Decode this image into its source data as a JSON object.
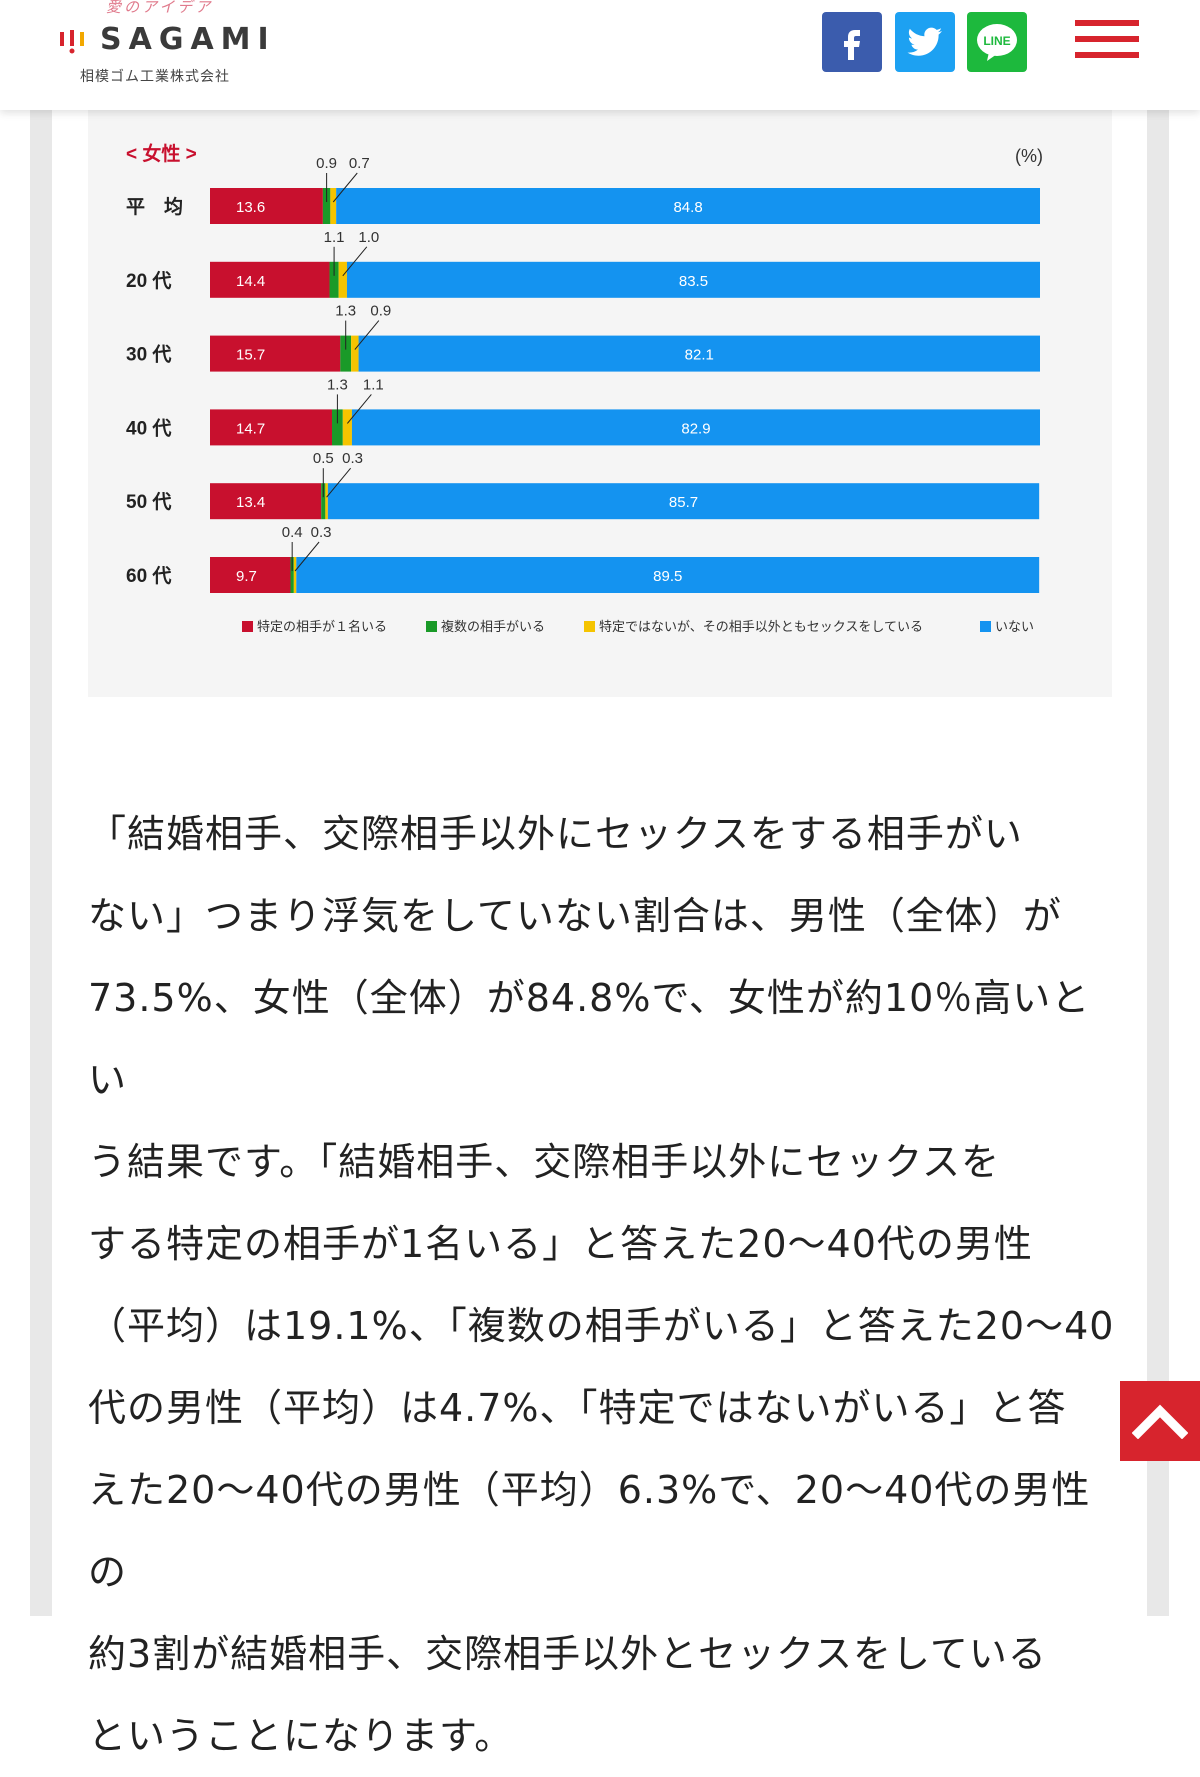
{
  "header": {
    "logo_tagline": "愛のアイデア",
    "logo_text": "SAGAMI",
    "logo_company": "相模ゴム工業株式会社",
    "social": [
      {
        "name": "facebook",
        "glyph": "f",
        "color": "#3b5cad"
      },
      {
        "name": "twitter",
        "glyph": "twitter-bird",
        "color": "#1da1f2"
      },
      {
        "name": "line",
        "glyph": "LINE",
        "color": "#1db93d"
      }
    ],
    "menu_icon": "hamburger-icon",
    "accent": "#d7242d"
  },
  "chart_data": {
    "type": "bar",
    "orientation": "horizontal",
    "stacked": true,
    "title": "< 女性 >",
    "unit_label": "(%)",
    "categories": [
      "平　均",
      "20 代",
      "30 代",
      "40 代",
      "50 代",
      "60 代"
    ],
    "series": [
      {
        "name": "特定の相手が１名いる",
        "color": "#c8102e",
        "values": [
          13.6,
          14.4,
          15.7,
          14.7,
          13.4,
          9.7
        ]
      },
      {
        "name": "複数の相手がいる",
        "color": "#1a9a28",
        "values": [
          0.9,
          1.1,
          1.3,
          1.3,
          0.5,
          0.4
        ]
      },
      {
        "name": "特定ではないが、その相手以外ともセックスをしている",
        "color": "#f5c400",
        "values": [
          0.7,
          1.0,
          0.9,
          1.1,
          0.3,
          0.3
        ]
      },
      {
        "name": "いない",
        "color": "#1493f0",
        "values": [
          84.8,
          83.5,
          82.1,
          82.9,
          85.7,
          89.5
        ]
      }
    ],
    "value_labels": {
      "red": [
        "13.6",
        "14.4",
        "15.7",
        "14.7",
        "13.4",
        "9.7"
      ],
      "green": [
        "0.9",
        "1.1",
        "1.3",
        "1.3",
        "0.5",
        "0.4"
      ],
      "yellow": [
        "0.7",
        "1.0",
        "0.9",
        "1.1",
        "0.3",
        "0.3"
      ],
      "blue": [
        "84.8",
        "83.5",
        "82.1",
        "82.9",
        "85.7",
        "89.5"
      ]
    },
    "legend_position": "bottom",
    "grid": false,
    "xlim": [
      0,
      100
    ]
  },
  "article": {
    "paragraph": "「結婚相手、交際相手以外にセックスをする相手がいない」つまり浮気をしていない割合は、男性（全体）が73.5%、女性（全体）が84.8%で、女性が約10％高いという結果です。「結婚相手、交際相手以外にセックスをする特定の相手が1名いる」と答えた20～40代の男性（平均）は19.1%、「複数の相手がいる」と答えた20～40代の男性（平均）は4.7%、「特定ではないがいる」と答えた20～40代の男性（平均）6.3%で、20～40代の男性の約3割が結婚相手、交際相手以外とセックスをしているということになります。",
    "lines": [
      "「結婚相手、交際相手以外にセックスをする相手がい",
      "ない」つまり浮気をしていない割合は、男性（全体）が",
      "73.5%、女性（全体）が84.8%で、女性が約10％高いとい",
      "う結果です。「結婚相手、交際相手以外にセックスを",
      "する特定の相手が1名いる」と答えた20～40代の男性",
      "（平均）は19.1%、「複数の相手がいる」と答えた20～40",
      "代の男性（平均）は4.7%、「特定ではないがいる」と答",
      "えた20～40代の男性（平均）6.3%で、20～40代の男性の",
      "約3割が結婚相手、交際相手以外とセックスをしている",
      "ということになります。"
    ]
  },
  "back_to_top": {
    "icon": "chevron-up-icon"
  }
}
